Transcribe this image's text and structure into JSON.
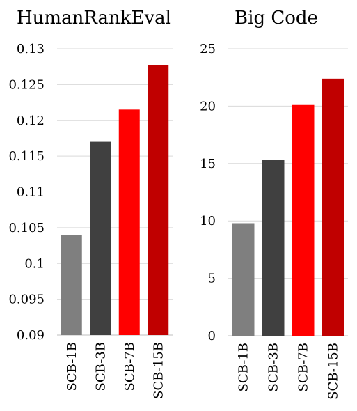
{
  "chart_data": [
    {
      "type": "bar",
      "title": "HumanRankEval",
      "categories": [
        "SCB-1B",
        "SCB-3B",
        "SCB-7B",
        "SCB-15B"
      ],
      "values": [
        0.104,
        0.117,
        0.1215,
        0.1277
      ],
      "colors": [
        "#7f7f7f",
        "#404040",
        "#ff0000",
        "#c00000"
      ],
      "ylim": [
        0.09,
        0.13
      ],
      "yticks": [
        "0.09",
        "0.095",
        "0.1",
        "0.105",
        "0.11",
        "0.115",
        "0.12",
        "0.125",
        "0.13"
      ],
      "grid": true,
      "xlabel": "",
      "ylabel": ""
    },
    {
      "type": "bar",
      "title": "Big Code",
      "categories": [
        "SCB-1B",
        "SCB-3B",
        "SCB-7B",
        "SCB-15B"
      ],
      "values": [
        9.8,
        15.3,
        20.1,
        22.4
      ],
      "colors": [
        "#7f7f7f",
        "#404040",
        "#ff0000",
        "#c00000"
      ],
      "ylim": [
        0,
        25
      ],
      "yticks": [
        "0",
        "5",
        "10",
        "15",
        "20",
        "25"
      ],
      "grid": true,
      "xlabel": "",
      "ylabel": ""
    }
  ]
}
